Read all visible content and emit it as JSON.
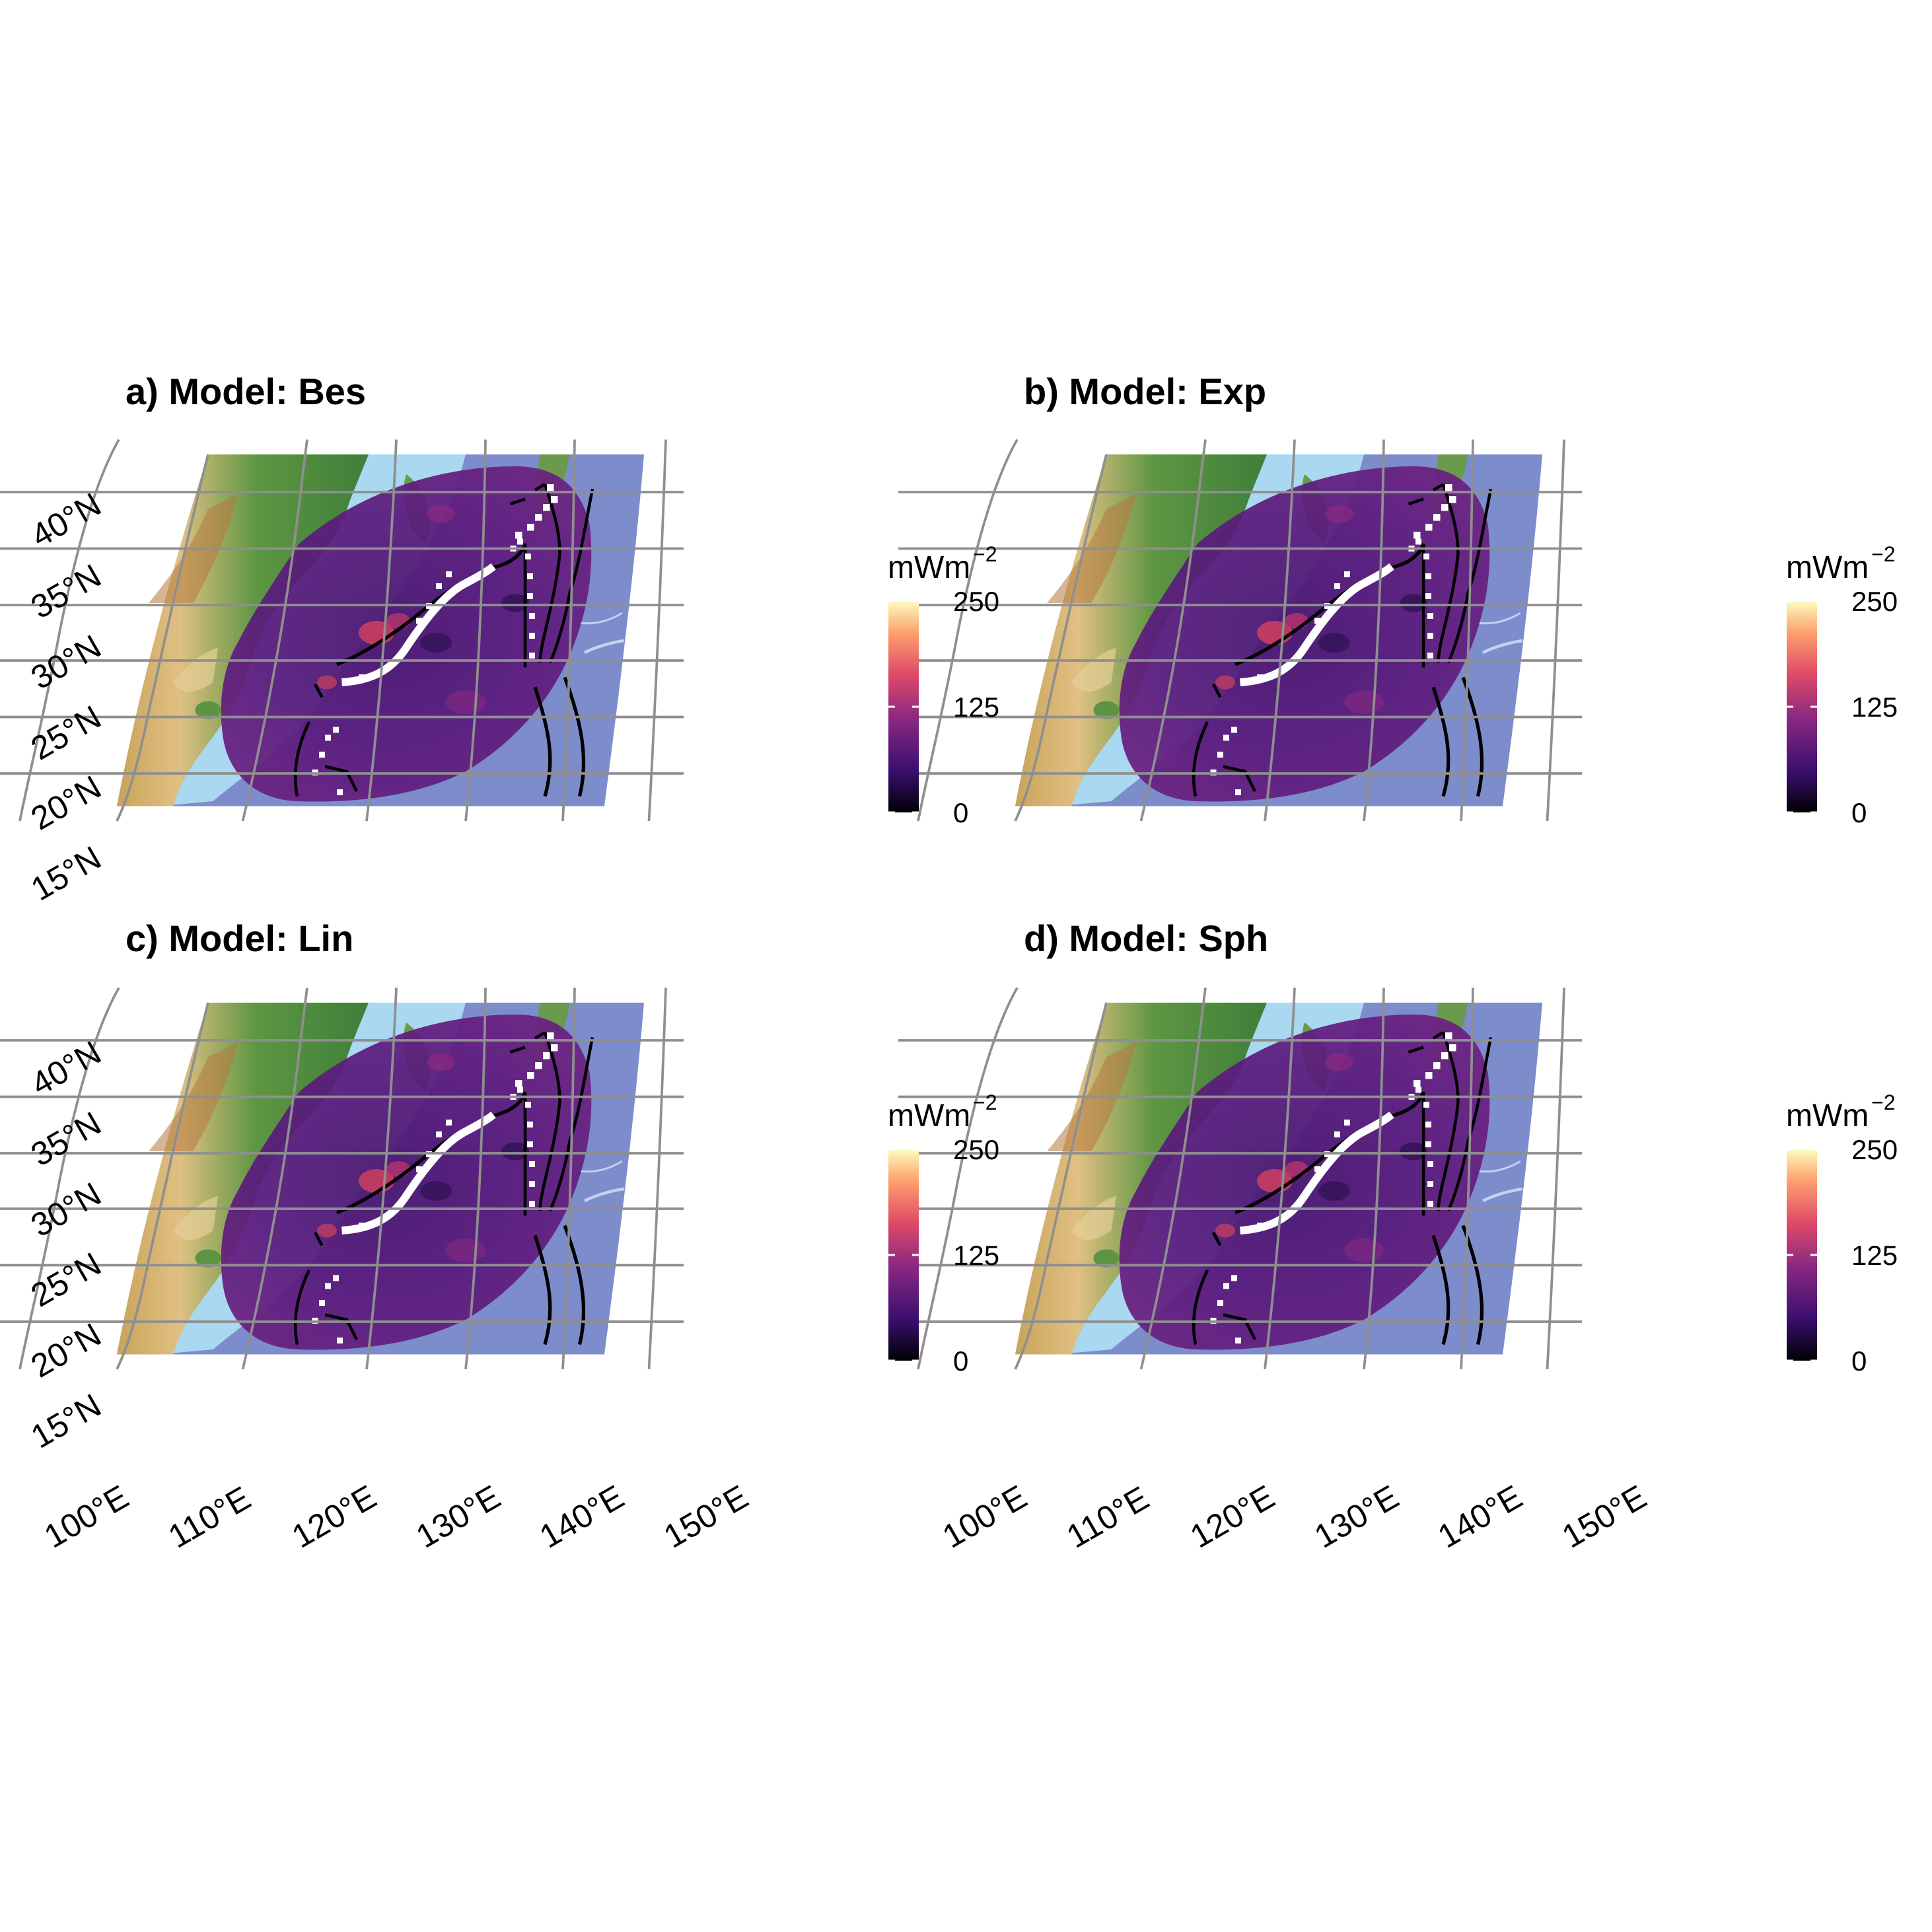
{
  "figure": {
    "panels": [
      {
        "id": "a",
        "title": "a) Model: Bes"
      },
      {
        "id": "b",
        "title": "b) Model: Exp"
      },
      {
        "id": "c",
        "title": "c) Model: Lin"
      },
      {
        "id": "d",
        "title": "d) Model: Sph"
      }
    ],
    "latitude_labels": [
      "40°N",
      "35°N",
      "30°N",
      "25°N",
      "20°N",
      "15°N"
    ],
    "longitude_labels": [
      "100°E",
      "110°E",
      "120°E",
      "130°E",
      "140°E",
      "150°E"
    ],
    "legend": {
      "unit_base": "mWm",
      "unit_exponent": "−2",
      "ticks": [
        "250",
        "125",
        "0"
      ],
      "range": [
        0,
        250
      ],
      "colormap": "magma",
      "colors": [
        "#000004",
        "#3b0f70",
        "#8c2981",
        "#de4968",
        "#fe9f6d",
        "#fcfdbf"
      ]
    },
    "colors": {
      "graticule": "#8f8f8f",
      "ocean": "#7f8fc8",
      "shallow_sea": "#a9d8f0",
      "land_low": "#4e8a3a",
      "land_high": "#d9b870",
      "overlay": "#5a1a7a",
      "subduction_line": "#000000",
      "interface_segment": "#ffffff"
    }
  }
}
